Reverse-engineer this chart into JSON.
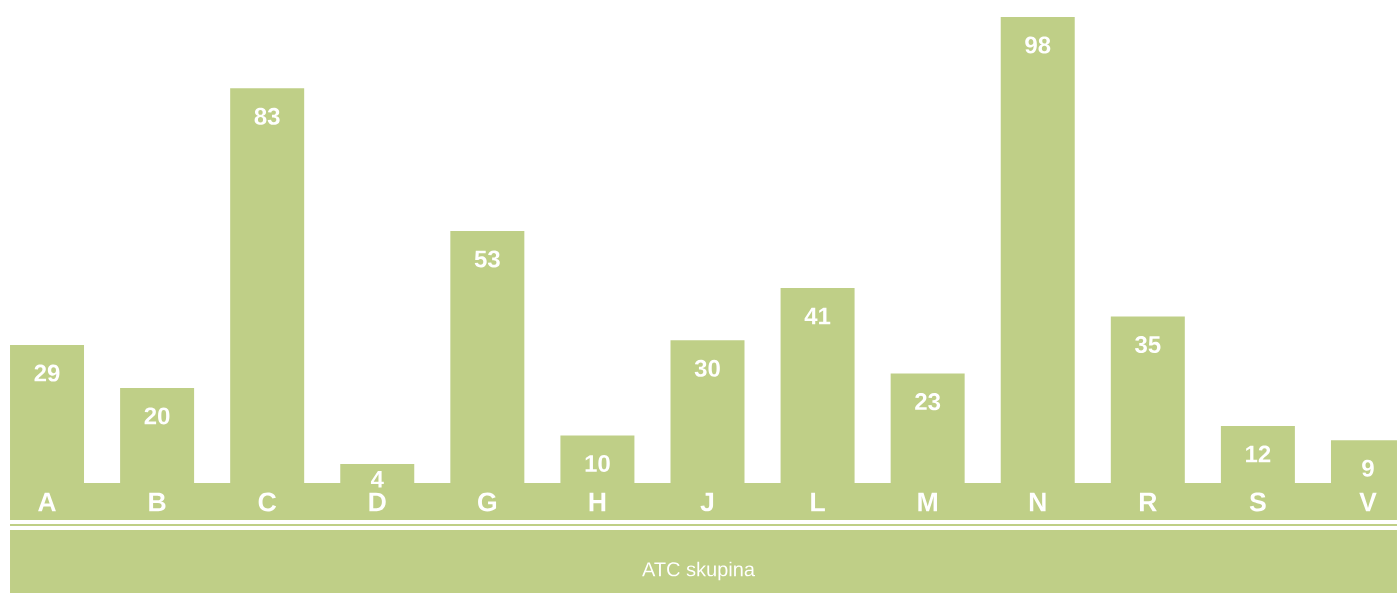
{
  "chart_data": {
    "type": "bar",
    "xlabel": "ATC skupina",
    "categories": [
      "A",
      "B",
      "C",
      "D",
      "G",
      "H",
      "J",
      "L",
      "M",
      "N",
      "R",
      "S",
      "V"
    ],
    "values": [
      29,
      20,
      83,
      4,
      53,
      10,
      30,
      41,
      23,
      98,
      35,
      12,
      9
    ],
    "color": "#bfcf87",
    "data_labels": true
  }
}
